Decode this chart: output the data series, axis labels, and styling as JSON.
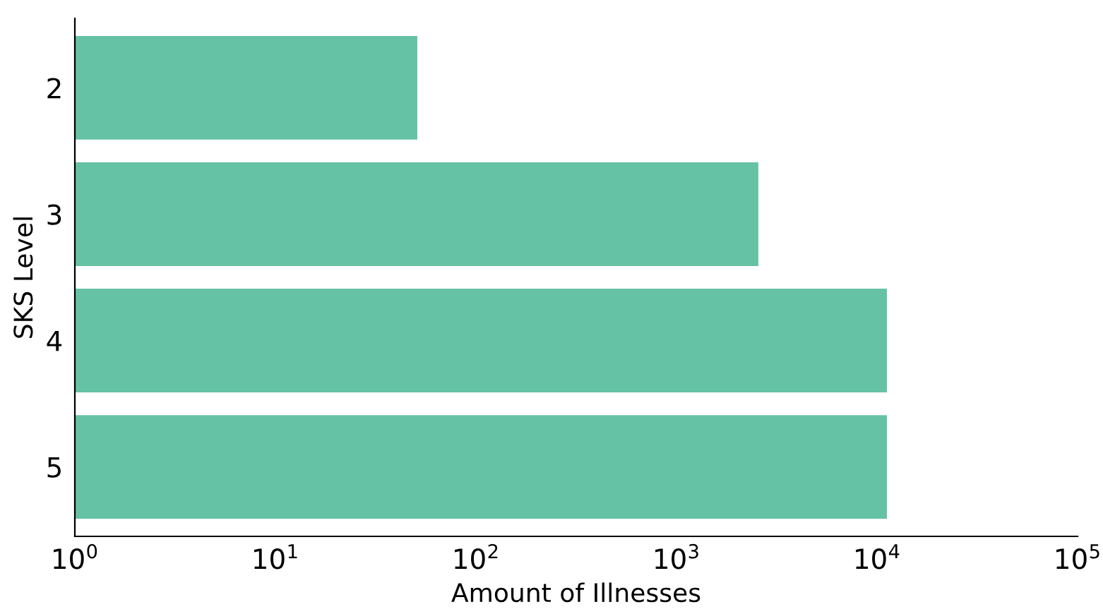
{
  "chart_data": {
    "type": "bar",
    "orientation": "horizontal",
    "xlabel": "Amount of Illnesses",
    "ylabel": "SKS Level",
    "categories": [
      "2",
      "3",
      "4",
      "5"
    ],
    "values": [
      51,
      2560,
      11200,
      11200
    ],
    "color": "#66c2a5",
    "log": "x",
    "xlim": [
      1,
      100000
    ],
    "xticks": [
      {
        "value": 1,
        "label": "10$^{0}$"
      },
      {
        "value": 10,
        "label": "10$^{1}$"
      },
      {
        "value": 100,
        "label": "10$^{2}$"
      },
      {
        "value": 1000,
        "label": "10$^{3}$"
      },
      {
        "value": 10000,
        "label": "10$^{4}$"
      },
      {
        "value": 100000,
        "label": "10$^{5}$"
      }
    ],
    "grid": false,
    "legend": false
  }
}
